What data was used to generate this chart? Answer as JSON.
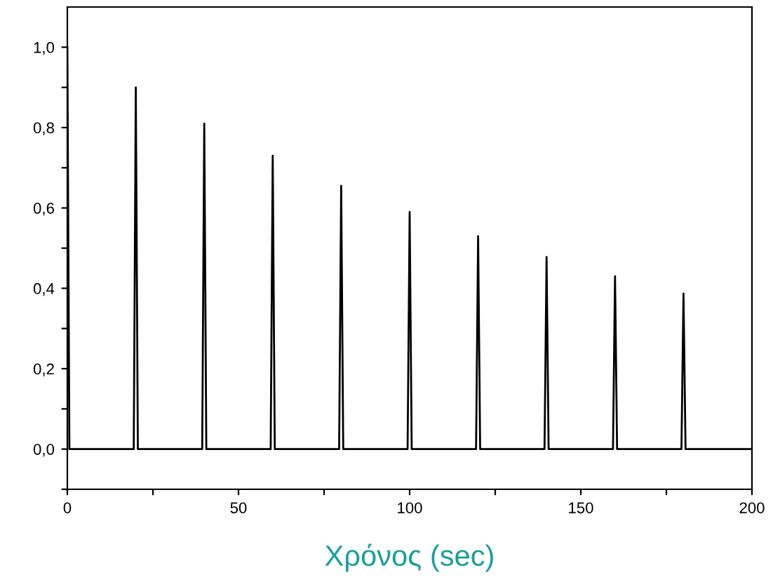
{
  "chart_data": {
    "type": "line",
    "xlabel": "Χρόνος (sec)",
    "series": [
      {
        "color": "#000000",
        "x": [
          0,
          0.6,
          19.4,
          20,
          20.6,
          39.4,
          40,
          40.6,
          59.4,
          60,
          60.6,
          79.4,
          80,
          80.6,
          99.4,
          100,
          100.6,
          119.4,
          120,
          120.6,
          139.4,
          140,
          140.6,
          159.4,
          160,
          160.6,
          179.4,
          180,
          180.6,
          200
        ],
        "values": [
          1.0,
          0,
          0,
          0.9,
          0,
          0,
          0.81,
          0,
          0,
          0.73,
          0,
          0,
          0.655,
          0,
          0,
          0.59,
          0,
          0,
          0.53,
          0,
          0,
          0.478,
          0,
          0,
          0.43,
          0,
          0,
          0.387,
          0,
          0
        ]
      }
    ],
    "xlim": [
      0,
      200
    ],
    "ylim": [
      -0.1,
      1.1
    ],
    "xticks": [
      0,
      {
        "value": 25,
        "label": null
      },
      50,
      {
        "value": 75,
        "label": null
      },
      100,
      {
        "value": 125,
        "label": null
      },
      150,
      {
        "value": 175,
        "label": null
      },
      200
    ],
    "yticks": [
      {
        "value": -0.1,
        "label": null
      },
      {
        "value": 0,
        "label": "0,0"
      },
      {
        "value": 0.1,
        "label": null
      },
      {
        "value": 0.2,
        "label": "0,2"
      },
      {
        "value": 0.3,
        "label": null
      },
      {
        "value": 0.4,
        "label": "0,4"
      },
      {
        "value": 0.5,
        "label": null
      },
      {
        "value": 0.6,
        "label": "0,6"
      },
      {
        "value": 0.7,
        "label": null
      },
      {
        "value": 0.8,
        "label": "0,8"
      },
      {
        "value": 0.9,
        "label": null
      },
      {
        "value": 1.0,
        "label": "1,0"
      }
    ],
    "grid": false,
    "legend": false,
    "line_style": "solid",
    "marker": "none"
  }
}
